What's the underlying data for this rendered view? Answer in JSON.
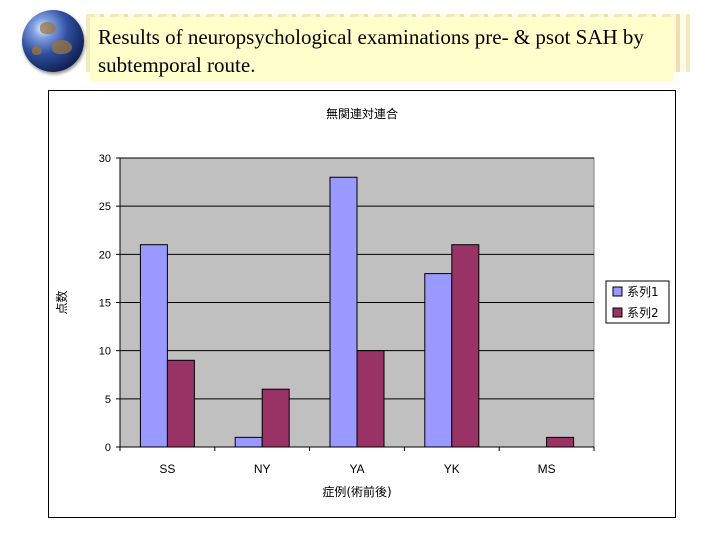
{
  "slide": {
    "title": "Results of neuropsychological examinations pre- & psot SAH by subtemporal route.",
    "logo_icon": "globe-icon"
  },
  "colors": {
    "title_bg": "#ffffcc",
    "plot_bg": "#c0c0c0",
    "series1": "#9999ff",
    "series2": "#993366"
  },
  "chart_data": {
    "type": "bar",
    "title": "無関連対連合",
    "xlabel": "症例(術前後)",
    "ylabel": "点数",
    "categories": [
      "SS",
      "NY",
      "YA",
      "YK",
      "MS"
    ],
    "series": [
      {
        "name": "系列1",
        "values": [
          21,
          1,
          28,
          18,
          0
        ]
      },
      {
        "name": "系列2",
        "values": [
          9,
          6,
          10,
          21,
          1
        ]
      }
    ],
    "ylim": [
      0,
      30
    ],
    "yticks": [
      0,
      5,
      10,
      15,
      20,
      25,
      30
    ],
    "grid": true,
    "legend": "right"
  }
}
